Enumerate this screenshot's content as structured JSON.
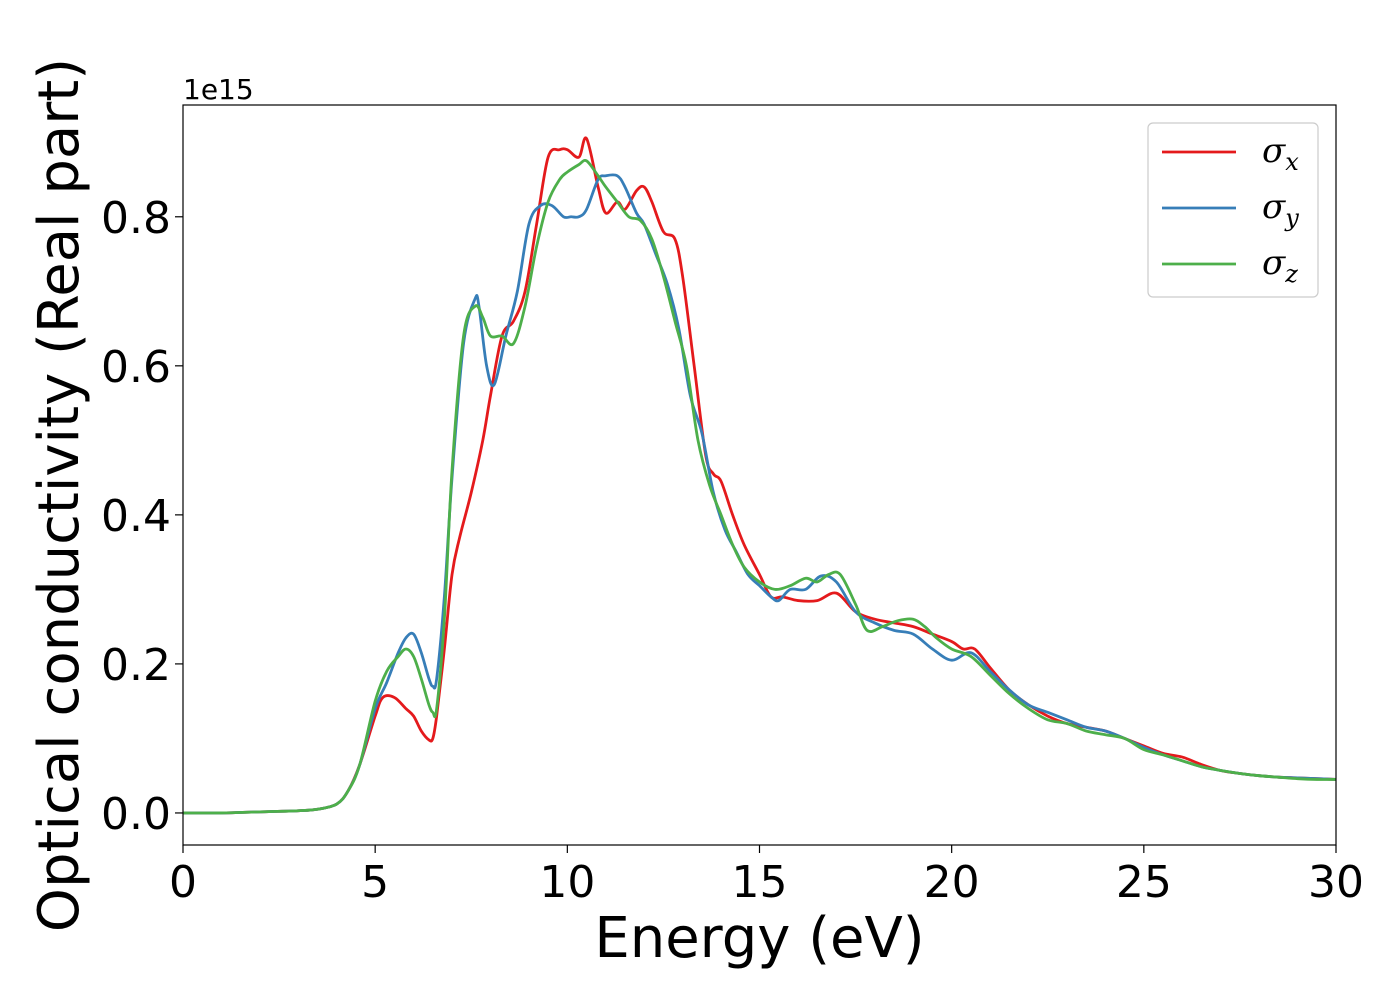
{
  "chart_data": {
    "type": "line",
    "xlabel": "Energy (eV)",
    "ylabel": "Optical conductivity (Real part)",
    "y_offset_label": "1e15",
    "xlim": [
      0,
      30
    ],
    "ylim": [
      -0.043,
      0.95
    ],
    "x_ticks": [
      0,
      5,
      10,
      15,
      20,
      25,
      30
    ],
    "x_tick_labels": [
      "0",
      "5",
      "10",
      "15",
      "20",
      "25",
      "30"
    ],
    "y_ticks": [
      0.0,
      0.2,
      0.4,
      0.6,
      0.8
    ],
    "y_tick_labels": [
      "0.0",
      "0.2",
      "0.4",
      "0.6",
      "0.8"
    ],
    "grid": false,
    "legend_position": "top-right",
    "series": [
      {
        "name": "σ_x",
        "symbol": "σ",
        "subscript": "x",
        "color": "#e41a1c",
        "x": [
          0,
          1,
          2,
          3,
          3.5,
          4,
          4.3,
          4.6,
          5.0,
          5.2,
          5.5,
          5.8,
          6.0,
          6.2,
          6.4,
          6.5,
          6.6,
          6.8,
          7.0,
          7.2,
          7.5,
          7.8,
          8.0,
          8.3,
          8.6,
          8.9,
          9.2,
          9.5,
          9.8,
          10.0,
          10.3,
          10.5,
          10.8,
          11.0,
          11.3,
          11.5,
          11.8,
          12.0,
          12.2,
          12.5,
          12.8,
          13.0,
          13.3,
          13.6,
          13.8,
          14.0,
          14.3,
          14.6,
          15.0,
          15.3,
          15.6,
          16.0,
          16.5,
          17.0,
          17.5,
          18.0,
          18.5,
          19.0,
          19.5,
          20.0,
          20.3,
          20.6,
          21.0,
          21.5,
          22.0,
          22.5,
          23.0,
          23.5,
          24.0,
          24.5,
          25.0,
          25.5,
          26.0,
          26.5,
          27.0,
          27.5,
          28.0,
          28.5,
          29.0,
          29.5,
          30.0
        ],
        "y": [
          0.0,
          0.0,
          0.0015,
          0.003,
          0.005,
          0.012,
          0.03,
          0.065,
          0.13,
          0.155,
          0.155,
          0.14,
          0.13,
          0.11,
          0.098,
          0.1,
          0.13,
          0.22,
          0.32,
          0.37,
          0.43,
          0.5,
          0.56,
          0.64,
          0.66,
          0.7,
          0.79,
          0.88,
          0.89,
          0.89,
          0.88,
          0.905,
          0.84,
          0.805,
          0.82,
          0.81,
          0.835,
          0.84,
          0.82,
          0.78,
          0.77,
          0.72,
          0.6,
          0.48,
          0.455,
          0.445,
          0.4,
          0.36,
          0.32,
          0.29,
          0.29,
          0.285,
          0.285,
          0.295,
          0.27,
          0.26,
          0.255,
          0.25,
          0.24,
          0.23,
          0.22,
          0.22,
          0.195,
          0.165,
          0.145,
          0.13,
          0.12,
          0.115,
          0.11,
          0.1,
          0.09,
          0.08,
          0.075,
          0.065,
          0.057,
          0.053,
          0.05,
          0.048,
          0.047,
          0.046,
          0.045
        ]
      },
      {
        "name": "σ_y",
        "symbol": "σ",
        "subscript": "y",
        "color": "#377eb8",
        "x": [
          0,
          1,
          2,
          3,
          3.5,
          4,
          4.3,
          4.6,
          5.0,
          5.3,
          5.6,
          5.8,
          6.0,
          6.2,
          6.4,
          6.5,
          6.6,
          6.8,
          7.0,
          7.3,
          7.6,
          7.7,
          7.9,
          8.1,
          8.4,
          8.7,
          9.0,
          9.3,
          9.6,
          9.9,
          10.1,
          10.3,
          10.5,
          10.8,
          11.0,
          11.3,
          11.5,
          11.8,
          12.0,
          12.3,
          12.6,
          12.9,
          13.2,
          13.5,
          13.8,
          14.1,
          14.4,
          14.7,
          15.0,
          15.3,
          15.5,
          15.8,
          16.2,
          16.6,
          17.0,
          17.5,
          18.0,
          18.5,
          19.0,
          19.5,
          20.0,
          20.5,
          21.0,
          21.5,
          22.0,
          22.5,
          23.0,
          23.5,
          24.0,
          24.5,
          25.0,
          25.5,
          26.0,
          26.5,
          27.0,
          27.5,
          28.0,
          28.5,
          29.0,
          29.5,
          30.0
        ],
        "y": [
          0.0,
          0.0,
          0.0015,
          0.003,
          0.005,
          0.012,
          0.03,
          0.065,
          0.14,
          0.175,
          0.215,
          0.235,
          0.24,
          0.215,
          0.18,
          0.17,
          0.18,
          0.29,
          0.45,
          0.63,
          0.69,
          0.68,
          0.6,
          0.575,
          0.64,
          0.7,
          0.79,
          0.815,
          0.815,
          0.8,
          0.8,
          0.8,
          0.81,
          0.85,
          0.855,
          0.855,
          0.84,
          0.805,
          0.79,
          0.75,
          0.71,
          0.65,
          0.56,
          0.51,
          0.43,
          0.38,
          0.35,
          0.32,
          0.305,
          0.29,
          0.285,
          0.3,
          0.3,
          0.318,
          0.31,
          0.27,
          0.255,
          0.245,
          0.24,
          0.22,
          0.205,
          0.215,
          0.19,
          0.165,
          0.145,
          0.135,
          0.125,
          0.115,
          0.11,
          0.1,
          0.088,
          0.078,
          0.07,
          0.062,
          0.057,
          0.053,
          0.05,
          0.048,
          0.047,
          0.046,
          0.045
        ]
      },
      {
        "name": "σ_z",
        "symbol": "σ",
        "subscript": "z",
        "color": "#4daf4a",
        "x": [
          0,
          1,
          2,
          3,
          3.5,
          4,
          4.3,
          4.6,
          5.0,
          5.3,
          5.6,
          5.8,
          6.0,
          6.2,
          6.4,
          6.5,
          6.6,
          6.8,
          7.0,
          7.3,
          7.6,
          7.8,
          8.0,
          8.3,
          8.6,
          8.9,
          9.2,
          9.5,
          9.8,
          10.0,
          10.3,
          10.5,
          10.8,
          11.0,
          11.3,
          11.6,
          11.9,
          12.2,
          12.5,
          12.8,
          13.1,
          13.4,
          13.7,
          14.0,
          14.3,
          14.6,
          15.0,
          15.4,
          15.8,
          16.2,
          16.5,
          16.8,
          17.1,
          17.5,
          17.8,
          18.2,
          18.6,
          19.0,
          19.3,
          19.6,
          20.0,
          20.5,
          21.0,
          21.5,
          22.0,
          22.5,
          23.0,
          23.5,
          24.0,
          24.5,
          25.0,
          25.5,
          26.0,
          26.5,
          27.0,
          27.5,
          28.0,
          28.5,
          29.0,
          29.5,
          30.0
        ],
        "y": [
          0.0,
          0.0,
          0.0015,
          0.003,
          0.005,
          0.012,
          0.03,
          0.065,
          0.15,
          0.19,
          0.21,
          0.22,
          0.21,
          0.18,
          0.145,
          0.135,
          0.14,
          0.26,
          0.46,
          0.64,
          0.68,
          0.665,
          0.64,
          0.64,
          0.63,
          0.68,
          0.76,
          0.82,
          0.85,
          0.86,
          0.87,
          0.875,
          0.855,
          0.84,
          0.82,
          0.8,
          0.795,
          0.77,
          0.72,
          0.66,
          0.6,
          0.5,
          0.44,
          0.4,
          0.36,
          0.33,
          0.31,
          0.3,
          0.305,
          0.315,
          0.31,
          0.32,
          0.32,
          0.28,
          0.245,
          0.25,
          0.258,
          0.26,
          0.25,
          0.235,
          0.22,
          0.21,
          0.185,
          0.16,
          0.14,
          0.125,
          0.12,
          0.11,
          0.105,
          0.1,
          0.085,
          0.078,
          0.07,
          0.062,
          0.057,
          0.053,
          0.05,
          0.048,
          0.046,
          0.045,
          0.045
        ]
      }
    ]
  }
}
